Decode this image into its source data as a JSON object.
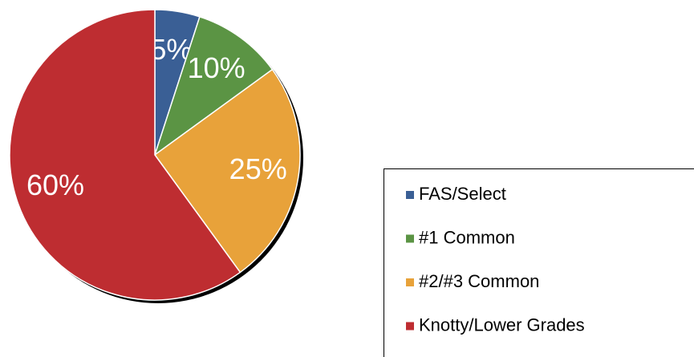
{
  "chart_data": {
    "type": "pie",
    "categories": [
      "FAS/Select",
      "#1 Common",
      "#2/#3 Common",
      "Knotty/Lower Grades"
    ],
    "values": [
      5,
      10,
      25,
      60
    ],
    "value_labels": [
      "5%",
      "10%",
      "25%",
      "60%"
    ],
    "colors": [
      "#3a5f95",
      "#5b9444",
      "#e8a23a",
      "#be2d31"
    ],
    "legend": "right"
  }
}
